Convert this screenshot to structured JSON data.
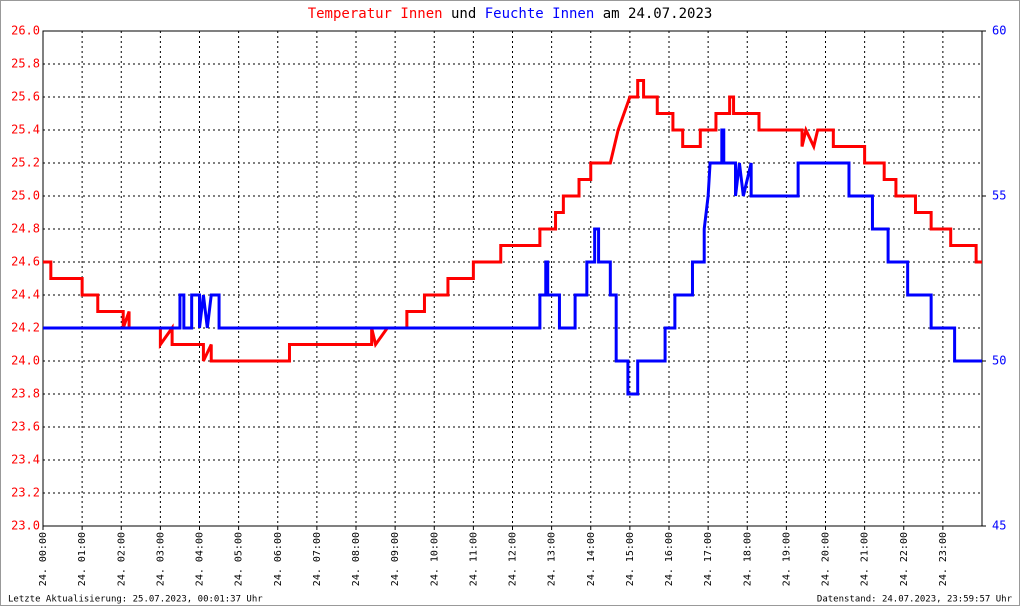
{
  "chart_data": {
    "type": "line",
    "title_joiner": "und",
    "title_suffix": "am 24.07.2023",
    "footer_left": "Letzte Aktualisierung: 25.07.2023, 00:01:37 Uhr",
    "footer_right": "Datenstand: 24.07.2023, 23:59:57 Uhr",
    "grid": true,
    "xlim": [
      0,
      24
    ],
    "xticks": [
      {
        "value": 0,
        "label": "24. 00:00"
      },
      {
        "value": 1,
        "label": "24. 01:00"
      },
      {
        "value": 2,
        "label": "24. 02:00"
      },
      {
        "value": 3,
        "label": "24. 03:00"
      },
      {
        "value": 4,
        "label": "24. 04:00"
      },
      {
        "value": 5,
        "label": "24. 05:00"
      },
      {
        "value": 6,
        "label": "24. 06:00"
      },
      {
        "value": 7,
        "label": "24. 07:00"
      },
      {
        "value": 8,
        "label": "24. 08:00"
      },
      {
        "value": 9,
        "label": "24. 09:00"
      },
      {
        "value": 10,
        "label": "24. 10:00"
      },
      {
        "value": 11,
        "label": "24. 11:00"
      },
      {
        "value": 12,
        "label": "24. 12:00"
      },
      {
        "value": 13,
        "label": "24. 13:00"
      },
      {
        "value": 14,
        "label": "24. 14:00"
      },
      {
        "value": 15,
        "label": "24. 15:00"
      },
      {
        "value": 16,
        "label": "24. 16:00"
      },
      {
        "value": 17,
        "label": "24. 17:00"
      },
      {
        "value": 18,
        "label": "24. 18:00"
      },
      {
        "value": 19,
        "label": "24. 19:00"
      },
      {
        "value": 20,
        "label": "24. 20:00"
      },
      {
        "value": 21,
        "label": "24. 21:00"
      },
      {
        "value": 22,
        "label": "24. 22:00"
      },
      {
        "value": 23,
        "label": "24. 23:00"
      }
    ],
    "ylim": [
      23.0,
      26.0
    ],
    "yticks": [
      {
        "value": 23.0,
        "label": "23.0"
      },
      {
        "value": 23.2,
        "label": "23.2"
      },
      {
        "value": 23.4,
        "label": "23.4"
      },
      {
        "value": 23.6,
        "label": "23.6"
      },
      {
        "value": 23.8,
        "label": "23.8"
      },
      {
        "value": 24.0,
        "label": "24.0"
      },
      {
        "value": 24.2,
        "label": "24.2"
      },
      {
        "value": 24.4,
        "label": "24.4"
      },
      {
        "value": 24.6,
        "label": "24.6"
      },
      {
        "value": 24.8,
        "label": "24.8"
      },
      {
        "value": 25.0,
        "label": "25.0"
      },
      {
        "value": 25.2,
        "label": "25.2"
      },
      {
        "value": 25.4,
        "label": "25.4"
      },
      {
        "value": 25.6,
        "label": "25.6"
      },
      {
        "value": 25.8,
        "label": "25.8"
      },
      {
        "value": 26.0,
        "label": "26.0"
      }
    ],
    "y2lim": [
      45,
      60
    ],
    "y2ticks": [
      45,
      50,
      55,
      60
    ],
    "series": [
      {
        "name": "Temperatur Innen",
        "color": "#ff0000",
        "x": [
          0,
          0.2,
          0.2,
          1.0,
          1.0,
          1.4,
          1.4,
          2.05,
          2.05,
          2.2,
          2.2,
          3.0,
          3.0,
          3.3,
          3.3,
          4.1,
          4.1,
          4.3,
          4.3,
          6.3,
          6.3,
          8.4,
          8.4,
          8.5,
          8.8,
          9.3,
          9.3,
          9.75,
          9.75,
          10.35,
          10.35,
          11.0,
          11.0,
          11.7,
          11.7,
          12.7,
          12.7,
          13.1,
          13.1,
          13.3,
          13.3,
          13.7,
          13.7,
          14.0,
          14.0,
          14.5,
          14.6,
          14.7,
          14.85,
          15.0,
          15.2,
          15.2,
          15.35,
          15.35,
          15.7,
          15.7,
          16.1,
          16.1,
          16.35,
          16.35,
          16.8,
          16.8,
          17.2,
          17.2,
          17.55,
          17.55,
          17.65,
          17.65,
          18.3,
          18.3,
          19.4,
          19.4,
          19.5,
          19.7,
          19.8,
          20.2,
          20.2,
          21.0,
          21.0,
          21.5,
          21.5,
          21.8,
          21.8,
          22.3,
          22.3,
          22.7,
          22.7,
          23.2,
          23.2,
          23.85,
          23.85,
          24
        ],
        "values": [
          24.6,
          24.6,
          24.5,
          24.5,
          24.4,
          24.4,
          24.3,
          24.3,
          24.2,
          24.3,
          24.2,
          24.2,
          24.1,
          24.2,
          24.1,
          24.1,
          24.0,
          24.1,
          24.0,
          24.0,
          24.1,
          24.1,
          24.2,
          24.1,
          24.2,
          24.2,
          24.3,
          24.3,
          24.4,
          24.4,
          24.5,
          24.5,
          24.6,
          24.6,
          24.7,
          24.7,
          24.8,
          24.8,
          24.9,
          24.9,
          25.0,
          25.0,
          25.1,
          25.1,
          25.2,
          25.2,
          25.3,
          25.4,
          25.5,
          25.6,
          25.6,
          25.7,
          25.7,
          25.6,
          25.6,
          25.5,
          25.5,
          25.4,
          25.4,
          25.3,
          25.3,
          25.4,
          25.4,
          25.5,
          25.5,
          25.6,
          25.6,
          25.5,
          25.5,
          25.4,
          25.4,
          25.3,
          25.4,
          25.3,
          25.4,
          25.4,
          25.3,
          25.3,
          25.2,
          25.2,
          25.1,
          25.1,
          25.0,
          25.0,
          24.9,
          24.9,
          24.8,
          24.8,
          24.7,
          24.7,
          24.6,
          24.6
        ]
      },
      {
        "name": "Feuchte Innen",
        "color": "#0000ff",
        "axis": "y2",
        "x": [
          0,
          3.5,
          3.5,
          3.6,
          3.6,
          3.8,
          3.8,
          4.0,
          4.0,
          4.1,
          4.2,
          4.3,
          4.5,
          4.5,
          12.7,
          12.7,
          12.85,
          12.85,
          12.9,
          12.9,
          13.2,
          13.2,
          13.6,
          13.6,
          13.9,
          13.9,
          14.1,
          14.1,
          14.2,
          14.2,
          14.5,
          14.5,
          14.65,
          14.65,
          14.95,
          14.95,
          15.2,
          15.2,
          15.9,
          15.9,
          16.15,
          16.15,
          16.6,
          16.6,
          16.9,
          16.9,
          17.0,
          17.05,
          17.35,
          17.35,
          17.4,
          17.4,
          17.7,
          17.7,
          17.8,
          17.9,
          18.1,
          18.1,
          19.3,
          19.3,
          20.6,
          20.6,
          21.2,
          21.2,
          21.6,
          21.6,
          22.1,
          22.1,
          22.7,
          22.7,
          23.3,
          23.3,
          24
        ],
        "values": [
          51,
          51,
          52,
          52,
          51,
          51,
          52,
          52,
          51,
          52,
          51,
          52,
          52,
          51,
          51,
          52,
          52,
          53,
          53,
          52,
          52,
          51,
          51,
          52,
          52,
          53,
          53,
          54,
          54,
          53,
          53,
          52,
          52,
          50,
          50,
          49,
          49,
          50,
          50,
          51,
          51,
          52,
          52,
          53,
          53,
          54,
          55,
          56,
          56,
          57,
          57,
          56,
          56,
          55,
          56,
          55,
          56,
          55,
          55,
          56,
          56,
          55,
          55,
          54,
          54,
          53,
          53,
          52,
          52,
          51,
          51,
          50,
          50
        ]
      }
    ]
  }
}
